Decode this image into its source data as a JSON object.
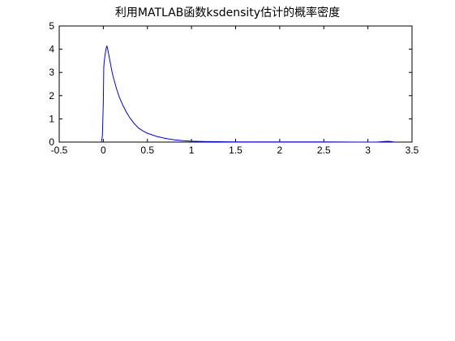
{
  "figure": {
    "title": "利用MATLAB函数ksdensity估计的概率密度"
  },
  "chart_data": {
    "type": "line",
    "title": "利用MATLAB函数ksdensity估计的概率密度",
    "xlabel": "",
    "ylabel": "",
    "xlim": [
      -0.5,
      3.5
    ],
    "ylim": [
      0,
      5
    ],
    "xticks": [
      "-0.5",
      "0",
      "0.5",
      "1",
      "1.5",
      "2",
      "2.5",
      "3",
      "3.5"
    ],
    "yticks": [
      "0",
      "1",
      "2",
      "3",
      "4",
      "5"
    ],
    "grid": false,
    "series": [
      {
        "color": "#0000ff",
        "x": [
          -0.02,
          -0.01,
          0.0,
          0.005,
          0.01,
          0.02,
          0.03,
          0.04,
          0.05,
          0.06,
          0.08,
          0.1,
          0.12,
          0.15,
          0.18,
          0.22,
          0.26,
          0.3,
          0.35,
          0.4,
          0.45,
          0.5,
          0.6,
          0.7,
          0.8,
          0.9,
          1.0,
          1.2,
          1.5,
          2.0,
          2.5,
          2.9,
          3.1,
          3.2,
          3.25,
          3.3
        ],
        "y": [
          0.0,
          0.3,
          1.7,
          3.2,
          3.45,
          3.75,
          4.0,
          4.15,
          4.0,
          3.8,
          3.4,
          3.0,
          2.7,
          2.3,
          1.95,
          1.6,
          1.3,
          1.05,
          0.8,
          0.6,
          0.48,
          0.38,
          0.25,
          0.16,
          0.1,
          0.06,
          0.04,
          0.02,
          0.01,
          0.01,
          0.01,
          0.0,
          0.0,
          0.03,
          0.03,
          0.0
        ]
      }
    ]
  }
}
